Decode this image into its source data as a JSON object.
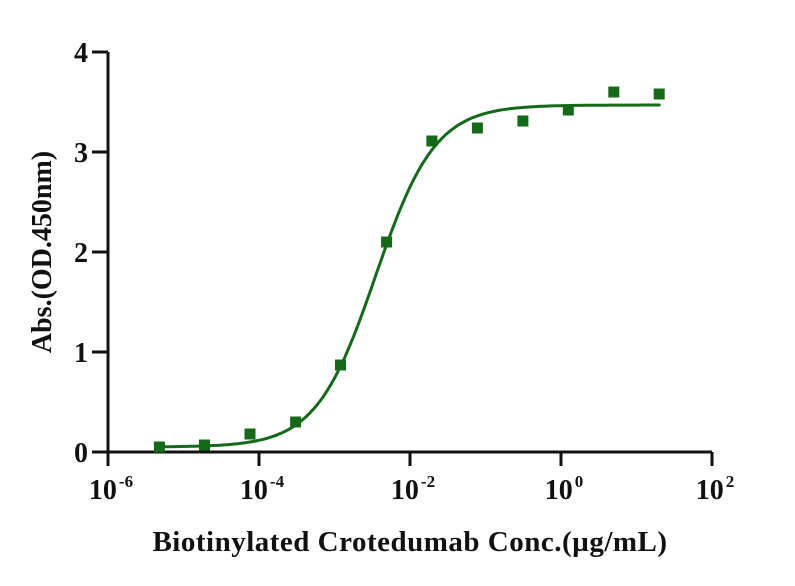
{
  "colors": {
    "series_green": "#146a18",
    "axis_black": "#111111",
    "background": "#ffffff"
  },
  "chart_data": {
    "type": "scatter",
    "title": "",
    "xlabel": "Biotinylated Crotedumab Conc.(µg/mL)",
    "ylabel": "Abs.(OD.450nm)",
    "x_scale": "log10",
    "xlim_exponents": [
      -6,
      2
    ],
    "x_tick_exponents": [
      -6,
      -4,
      -2,
      0,
      2
    ],
    "x_tick_base": "10",
    "ylim": [
      0,
      4
    ],
    "y_ticks": [
      0,
      1,
      2,
      3,
      4
    ],
    "grid": false,
    "legend": "none",
    "series": [
      {
        "name": "Biotinylated Crotedumab",
        "marker": "square",
        "color": "#146a18",
        "x": [
          4.8e-06,
          1.9e-05,
          7.6e-05,
          0.000305,
          0.0012,
          0.0049,
          0.0195,
          0.078,
          0.3125,
          1.25,
          5,
          20
        ],
        "y": [
          0.05,
          0.07,
          0.18,
          0.3,
          0.87,
          2.1,
          3.11,
          3.24,
          3.31,
          3.42,
          3.6,
          3.58
        ]
      }
    ],
    "fit": {
      "model": "4PL",
      "bottom": 0.05,
      "top": 3.47,
      "ec50": 0.0035,
      "hill": 1.1
    }
  }
}
